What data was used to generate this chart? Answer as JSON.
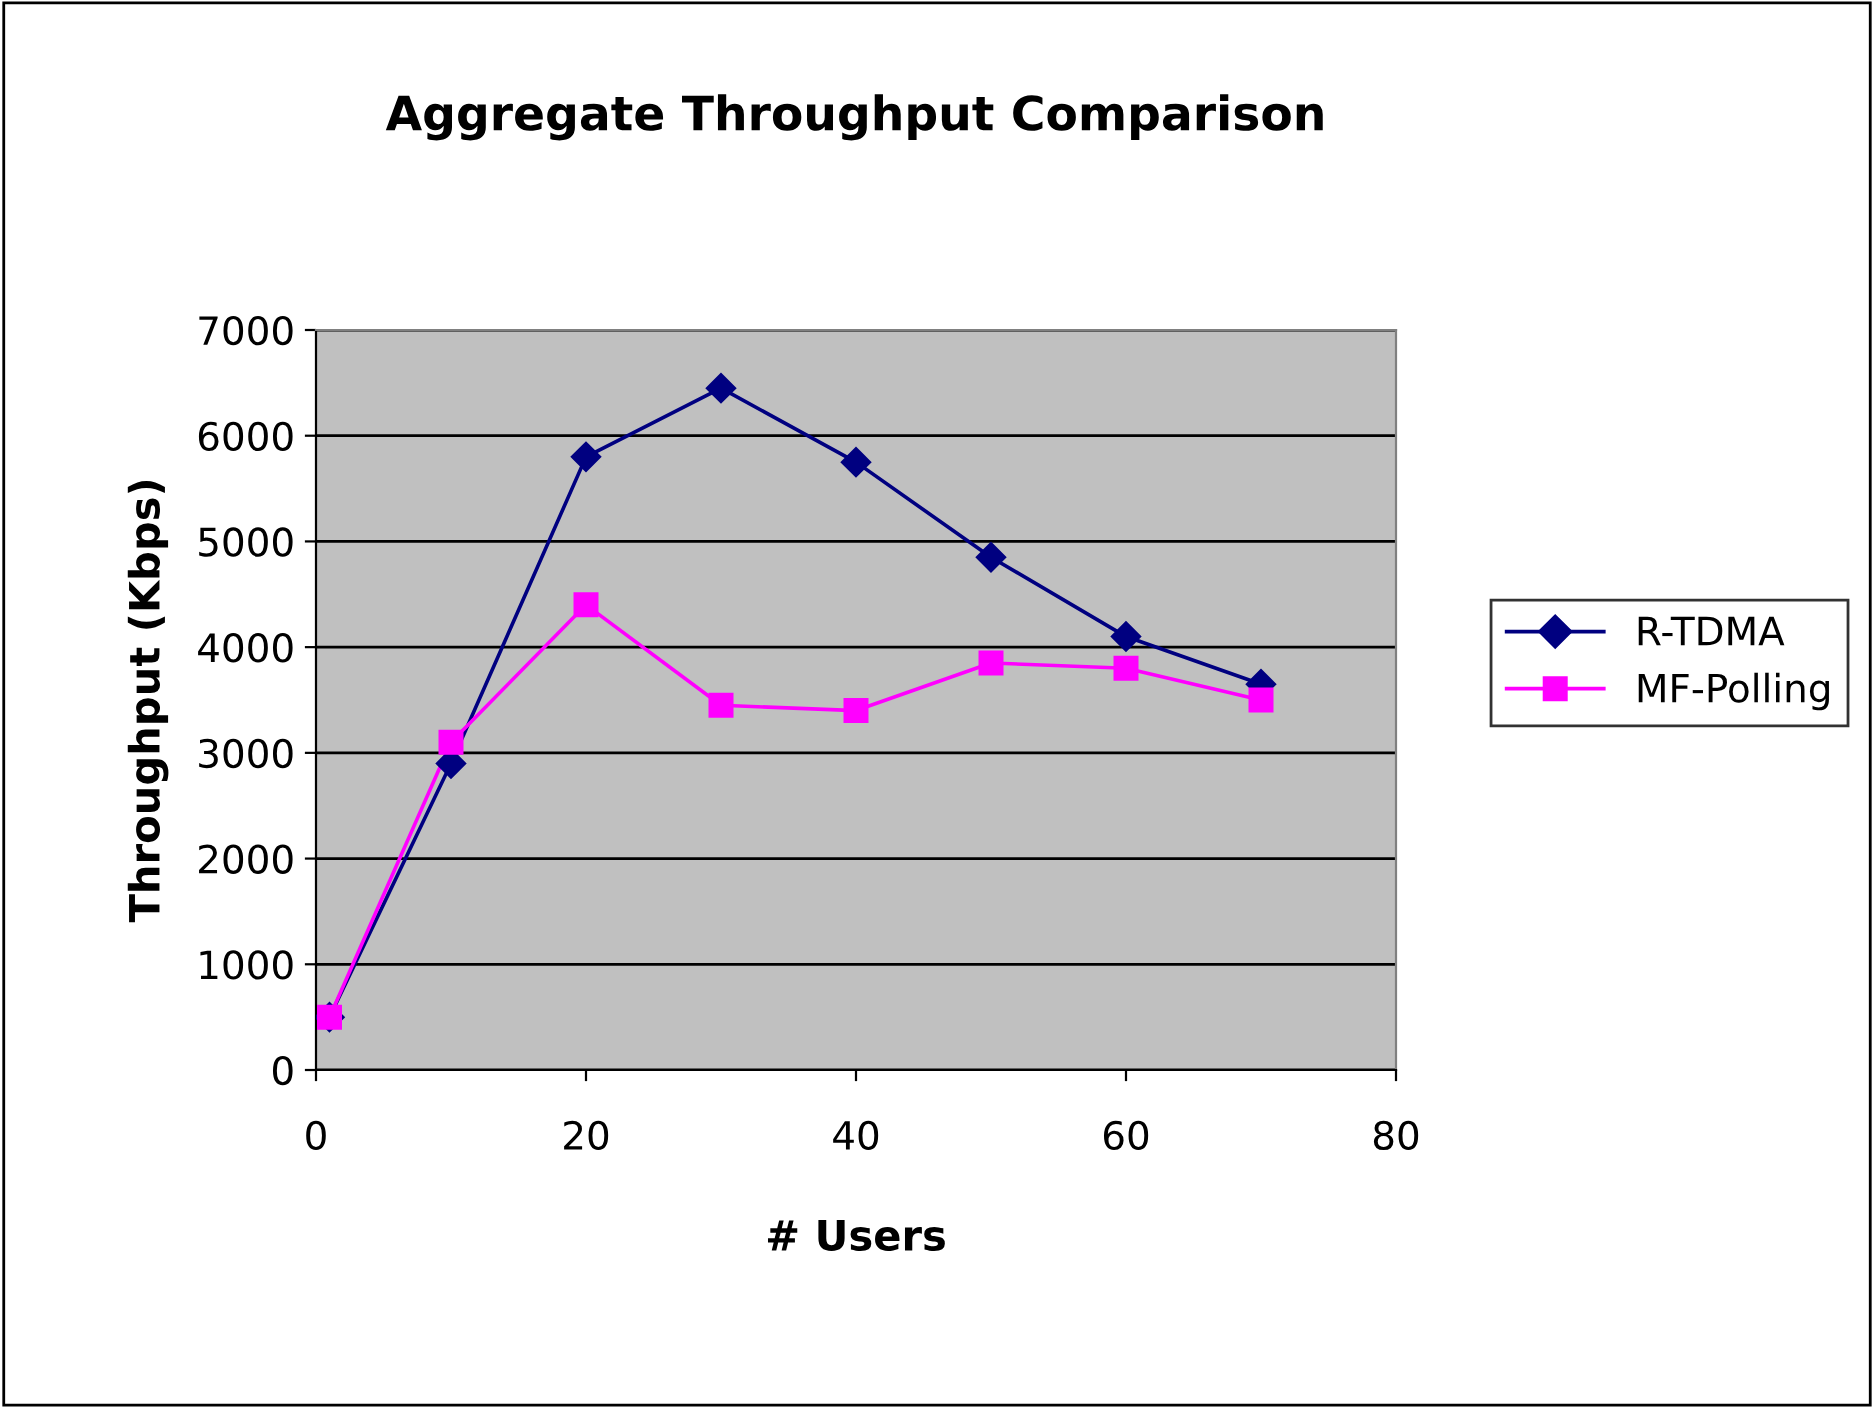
{
  "chart_data": {
    "type": "line",
    "title": "Aggregate Throughput Comparison",
    "xlabel": "# Users",
    "ylabel": "Throughput (Kbps)",
    "x": [
      1,
      10,
      20,
      30,
      40,
      50,
      60,
      70
    ],
    "series": [
      {
        "name": "R-TDMA",
        "color": "#000080",
        "marker": "diamond",
        "values": [
          500,
          2900,
          5800,
          6450,
          5750,
          4850,
          4100,
          3650
        ]
      },
      {
        "name": "MF-Polling",
        "color": "#ff00ff",
        "marker": "square",
        "values": [
          500,
          3100,
          4400,
          3450,
          3400,
          3850,
          3800,
          3500
        ]
      }
    ],
    "xlim": [
      0,
      80
    ],
    "xticks": [
      0,
      20,
      40,
      60,
      80
    ],
    "ylim": [
      0,
      7000
    ],
    "yticks": [
      0,
      1000,
      2000,
      3000,
      4000,
      5000,
      6000,
      7000
    ],
    "grid": "y",
    "legend": "right",
    "line_style": "solid"
  }
}
